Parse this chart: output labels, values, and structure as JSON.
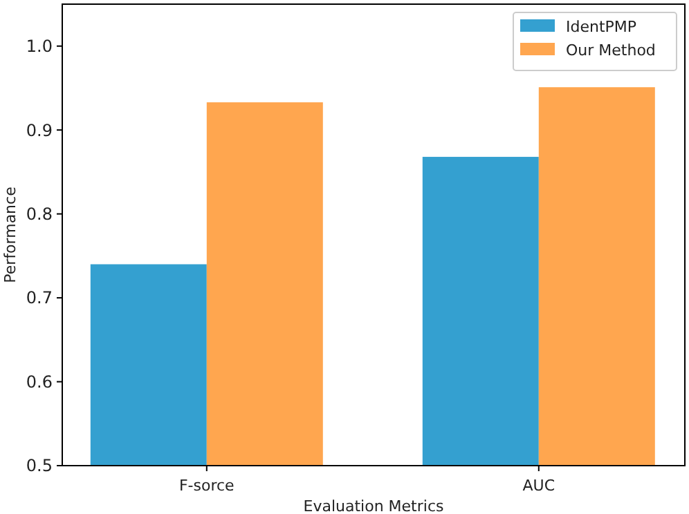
{
  "chart_data": {
    "type": "bar",
    "xlabel": "Evaluation Metrics",
    "ylabel": "Performance",
    "categories": [
      "F-sorce",
      "AUC"
    ],
    "series": [
      {
        "name": "IdentPMP",
        "color": "#34a0d0",
        "values": [
          0.74,
          0.868
        ]
      },
      {
        "name": "Our Method",
        "color": "#ffa64f",
        "values": [
          0.933,
          0.951
        ]
      }
    ],
    "ylim": [
      0.5,
      1.05
    ],
    "yticks": [
      0.5,
      0.6,
      0.7,
      0.8,
      0.9,
      {
        "value": 1,
        "label": "1.0"
      }
    ],
    "legend": "top right"
  }
}
